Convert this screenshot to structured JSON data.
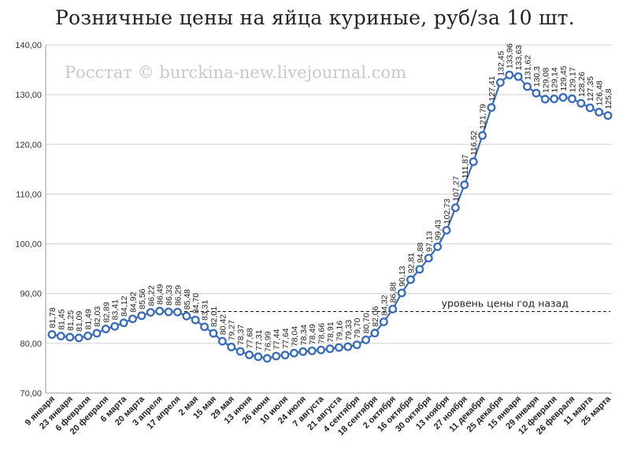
{
  "chart_data": {
    "type": "line",
    "title": "Розничные цены на яйца куриные, руб/за 10 шт.",
    "watermark": "Росстат © burckina-new.livejournal.com",
    "reference_line": {
      "label": "уровень цены год назад",
      "value": 86.4
    },
    "ylim": [
      70,
      140
    ],
    "yticks": [
      "70,00",
      "80,00",
      "90,00",
      "100,00",
      "110,00",
      "120,00",
      "130,00",
      "140,00"
    ],
    "xtick_labels": [
      "9 января",
      "23 января",
      "6 февраля",
      "20 февраля",
      "6 марта",
      "20 марта",
      "3 апреля",
      "17 апреля",
      "2 мая",
      "15 мая",
      "29 мая",
      "13 июня",
      "26 июня",
      "10 июля",
      "24 июля",
      "7 августа",
      "21 августа",
      "4 сентября",
      "18 сентября",
      "2 октября",
      "16 октября",
      "30 октября",
      "13 ноября",
      "27 ноября",
      "11 декабря",
      "25 декабря",
      "15 января",
      "29 января",
      "12 февраля",
      "26 февраля",
      "11 марта",
      "25 марта"
    ],
    "values": [
      81.78,
      81.45,
      81.25,
      81.09,
      81.49,
      82.03,
      82.89,
      83.41,
      84.12,
      84.92,
      85.56,
      86.22,
      86.49,
      86.33,
      86.29,
      85.48,
      84.7,
      83.31,
      82.01,
      80.42,
      79.27,
      78.37,
      77.68,
      77.31,
      76.99,
      77.44,
      77.64,
      78.04,
      78.34,
      78.49,
      78.66,
      78.91,
      79.16,
      79.33,
      79.7,
      80.7,
      82.06,
      84.32,
      86.88,
      90.13,
      92.81,
      94.88,
      97.13,
      99.43,
      102.73,
      107.27,
      111.87,
      116.52,
      121.79,
      127.41,
      132.45,
      133.96,
      133.63,
      131.62,
      130.3,
      129.08,
      129.14,
      129.45,
      129.17,
      128.26,
      127.35,
      126.48,
      125.8
    ],
    "data_labels": [
      "81,78",
      "81,45",
      "81,25",
      "81,09",
      "81,49",
      "82,03",
      "82,89",
      "83,41",
      "84,12",
      "84,92",
      "85,56",
      "86,22",
      "86,49",
      "86,33",
      "86,29",
      "85,48",
      "84,70",
      "83,31",
      "82,01",
      "80,42",
      "79,27",
      "78,37",
      "77,68",
      "77,31",
      "76,99",
      "77,44",
      "77,64",
      "78,04",
      "78,34",
      "78,49",
      "78,66",
      "78,91",
      "79,16",
      "79,33",
      "79,70",
      "80,70",
      "82,06",
      "84,32",
      "86,88",
      "90,13",
      "92,81",
      "94,88",
      "97,13",
      "99,43",
      "102,73",
      "107,27",
      "111,87",
      "116,52",
      "121,79",
      "127,41",
      "132,45",
      "133,96",
      "133,63",
      "131,62",
      "130,3",
      "129,08",
      "129,14",
      "129,45",
      "129,17",
      "128,26",
      "127,35",
      "126,48",
      "125,8"
    ],
    "grid": true,
    "colors": {
      "line": "#3a6cb5",
      "marker_fill": "#ffffff",
      "grid": "#cfcfcf",
      "reference": "#111111"
    }
  }
}
